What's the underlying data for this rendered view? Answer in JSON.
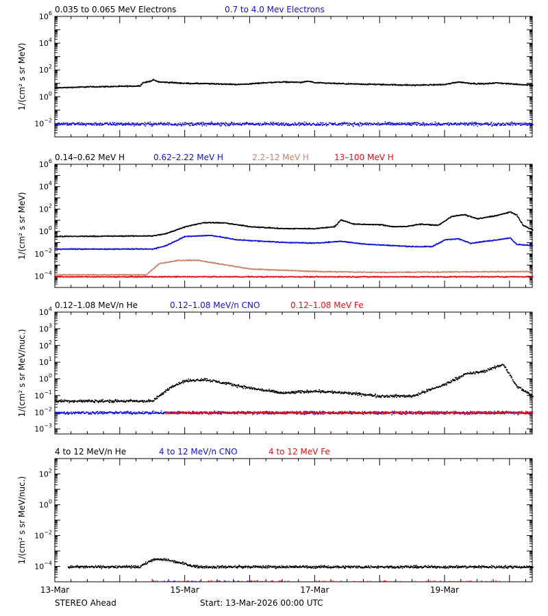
{
  "footer": {
    "spacecraft": "STEREO Ahead",
    "start": "Start: 13-Mar-2026 00:00 UTC"
  },
  "x_ticks": [
    "13-Mar",
    "15-Mar",
    "17-Mar",
    "19-Mar"
  ],
  "colors": {
    "black": "#000000",
    "blue": "#1010d8",
    "tan": "#c8846a",
    "red": "#e01010"
  },
  "chart_data": [
    {
      "type": "scatter",
      "ylabel": "1/(cm² s sr MeV)",
      "ylog": true,
      "ylim": [
        0.001,
        1000000
      ],
      "ytick_exponents": [
        -2,
        0,
        2,
        4,
        6
      ],
      "xlim_days": [
        0,
        7.35
      ],
      "series": [
        {
          "name": "0.035 to 0.065 MeV Electrons",
          "color": "#000000",
          "points": [
            [
              0,
              5
            ],
            [
              0.5,
              6
            ],
            [
              1,
              6.5
            ],
            [
              1.3,
              7
            ],
            [
              1.35,
              12
            ],
            [
              1.45,
              15
            ],
            [
              1.5,
              20
            ],
            [
              1.6,
              14
            ],
            [
              2,
              11
            ],
            [
              2.5,
              10
            ],
            [
              2.8,
              9
            ],
            [
              3,
              10
            ],
            [
              3.2,
              12
            ],
            [
              3.5,
              14
            ],
            [
              3.8,
              13
            ],
            [
              3.9,
              16
            ],
            [
              4,
              12
            ],
            [
              4.5,
              10
            ],
            [
              5,
              9
            ],
            [
              5.5,
              8
            ],
            [
              5.8,
              8.5
            ],
            [
              6,
              9
            ],
            [
              6.2,
              14
            ],
            [
              6.4,
              11
            ],
            [
              6.6,
              10
            ],
            [
              6.8,
              12
            ],
            [
              7,
              10
            ],
            [
              7.35,
              8
            ]
          ]
        },
        {
          "name": "0.7 to 4.0 Mev Electrons",
          "color": "#1010d8",
          "points": [
            [
              0,
              0.01
            ],
            [
              7.35,
              0.01
            ]
          ]
        }
      ]
    },
    {
      "type": "scatter",
      "ylabel": "1/(cm² s sr MeV)",
      "ylog": true,
      "ylim": [
        1e-05,
        1000000
      ],
      "ytick_exponents": [
        -4,
        -2,
        0,
        2,
        4,
        6
      ],
      "xlim_days": [
        0,
        7.35
      ],
      "series": [
        {
          "name": "0.14–0.62 MeV H",
          "color": "#000000",
          "points": [
            [
              0,
              0.4
            ],
            [
              1.5,
              0.45
            ],
            [
              1.7,
              0.7
            ],
            [
              2,
              3
            ],
            [
              2.3,
              7
            ],
            [
              2.6,
              6.5
            ],
            [
              3,
              3
            ],
            [
              3.5,
              2
            ],
            [
              4,
              2
            ],
            [
              4.3,
              3
            ],
            [
              4.4,
              12
            ],
            [
              4.6,
              5
            ],
            [
              5,
              4.5
            ],
            [
              5.2,
              3
            ],
            [
              5.4,
              3
            ],
            [
              5.6,
              5
            ],
            [
              5.9,
              4
            ],
            [
              6.1,
              25
            ],
            [
              6.3,
              35
            ],
            [
              6.5,
              15
            ],
            [
              6.8,
              30
            ],
            [
              7,
              60
            ],
            [
              7.1,
              35
            ],
            [
              7.2,
              4
            ],
            [
              7.35,
              1.5
            ]
          ]
        },
        {
          "name": "0.62–2.22 MeV H",
          "color": "#1010d8",
          "points": [
            [
              0,
              0.03
            ],
            [
              1.5,
              0.03
            ],
            [
              1.7,
              0.06
            ],
            [
              2,
              0.4
            ],
            [
              2.4,
              0.5
            ],
            [
              2.8,
              0.2
            ],
            [
              3.5,
              0.12
            ],
            [
              4,
              0.1
            ],
            [
              4.4,
              0.15
            ],
            [
              4.7,
              0.09
            ],
            [
              5,
              0.07
            ],
            [
              5.5,
              0.05
            ],
            [
              5.8,
              0.05
            ],
            [
              6,
              0.2
            ],
            [
              6.2,
              0.25
            ],
            [
              6.4,
              0.1
            ],
            [
              6.8,
              0.2
            ],
            [
              7,
              0.3
            ],
            [
              7.1,
              0.08
            ],
            [
              7.35,
              0.06
            ]
          ]
        },
        {
          "name": "2.2–12 MeV H",
          "color": "#c8846a",
          "points": [
            [
              0,
              0.00015
            ],
            [
              1.4,
              0.00015
            ],
            [
              1.6,
              0.0015
            ],
            [
              1.9,
              0.003
            ],
            [
              2.2,
              0.003
            ],
            [
              2.5,
              0.0015
            ],
            [
              3,
              0.0005
            ],
            [
              4,
              0.0003
            ],
            [
              5,
              0.00025
            ],
            [
              7.35,
              0.0003
            ]
          ]
        },
        {
          "name": "13–100 MeV H",
          "color": "#e01010",
          "points": [
            [
              0,
              0.0001
            ],
            [
              7.35,
              0.0001
            ]
          ]
        }
      ]
    },
    {
      "type": "scatter",
      "ylabel": "1/(cm² s sr MeV/nuc.)",
      "ylog": true,
      "ylim": [
        0.0005,
        10000
      ],
      "ytick_exponents": [
        -3,
        -2,
        -1,
        0,
        1,
        2,
        3,
        4
      ],
      "xlim_days": [
        0,
        7.35
      ],
      "series": [
        {
          "name": "0.12–1.08 MeV/n He",
          "color": "#000000",
          "points": [
            [
              0,
              0.05
            ],
            [
              1.5,
              0.05
            ],
            [
              1.6,
              0.1
            ],
            [
              1.8,
              0.4
            ],
            [
              2,
              0.8
            ],
            [
              2.3,
              1
            ],
            [
              2.6,
              0.6
            ],
            [
              3,
              0.3
            ],
            [
              3.5,
              0.15
            ],
            [
              4,
              0.2
            ],
            [
              4.5,
              0.15
            ],
            [
              5,
              0.1
            ],
            [
              5.5,
              0.1
            ],
            [
              6,
              0.5
            ],
            [
              6.3,
              2
            ],
            [
              6.6,
              3
            ],
            [
              6.9,
              8
            ],
            [
              7.1,
              0.4
            ],
            [
              7.35,
              0.1
            ]
          ]
        },
        {
          "name": "0.12–1.08 MeV/n CNO",
          "color": "#1010d8",
          "points": [
            [
              0,
              0.01
            ],
            [
              7.35,
              0.01
            ]
          ]
        },
        {
          "name": "0.12–1.08 MeV Fe",
          "color": "#e01010",
          "points": [
            [
              1.7,
              0.01
            ],
            [
              7.35,
              0.01
            ]
          ]
        }
      ]
    },
    {
      "type": "scatter",
      "ylabel": "1/(cm² s sr MeV/nuc.)",
      "ylog": true,
      "ylim": [
        1e-05,
        1000
      ],
      "ytick_exponents": [
        -4,
        -2,
        0,
        2
      ],
      "xlim_days": [
        0,
        7.35
      ],
      "series": [
        {
          "name": "4 to 12 MeV/n He",
          "color": "#000000",
          "points": [
            [
              0.2,
              0.0001
            ],
            [
              1.3,
              0.0001
            ],
            [
              1.5,
              0.0003
            ],
            [
              1.7,
              0.0003
            ],
            [
              2.2,
              0.0001
            ],
            [
              7.35,
              0.0001
            ]
          ]
        },
        {
          "name": "4 to 12 MeV/n CNO",
          "color": "#1010d8",
          "points": [
            [
              1.5,
              1e-05
            ],
            [
              3.5,
              1e-05
            ]
          ]
        },
        {
          "name": "4 to 12 MeV Fe",
          "color": "#e01010",
          "points": [
            [
              1.5,
              1e-05
            ],
            [
              7,
              1e-05
            ]
          ]
        }
      ]
    }
  ]
}
